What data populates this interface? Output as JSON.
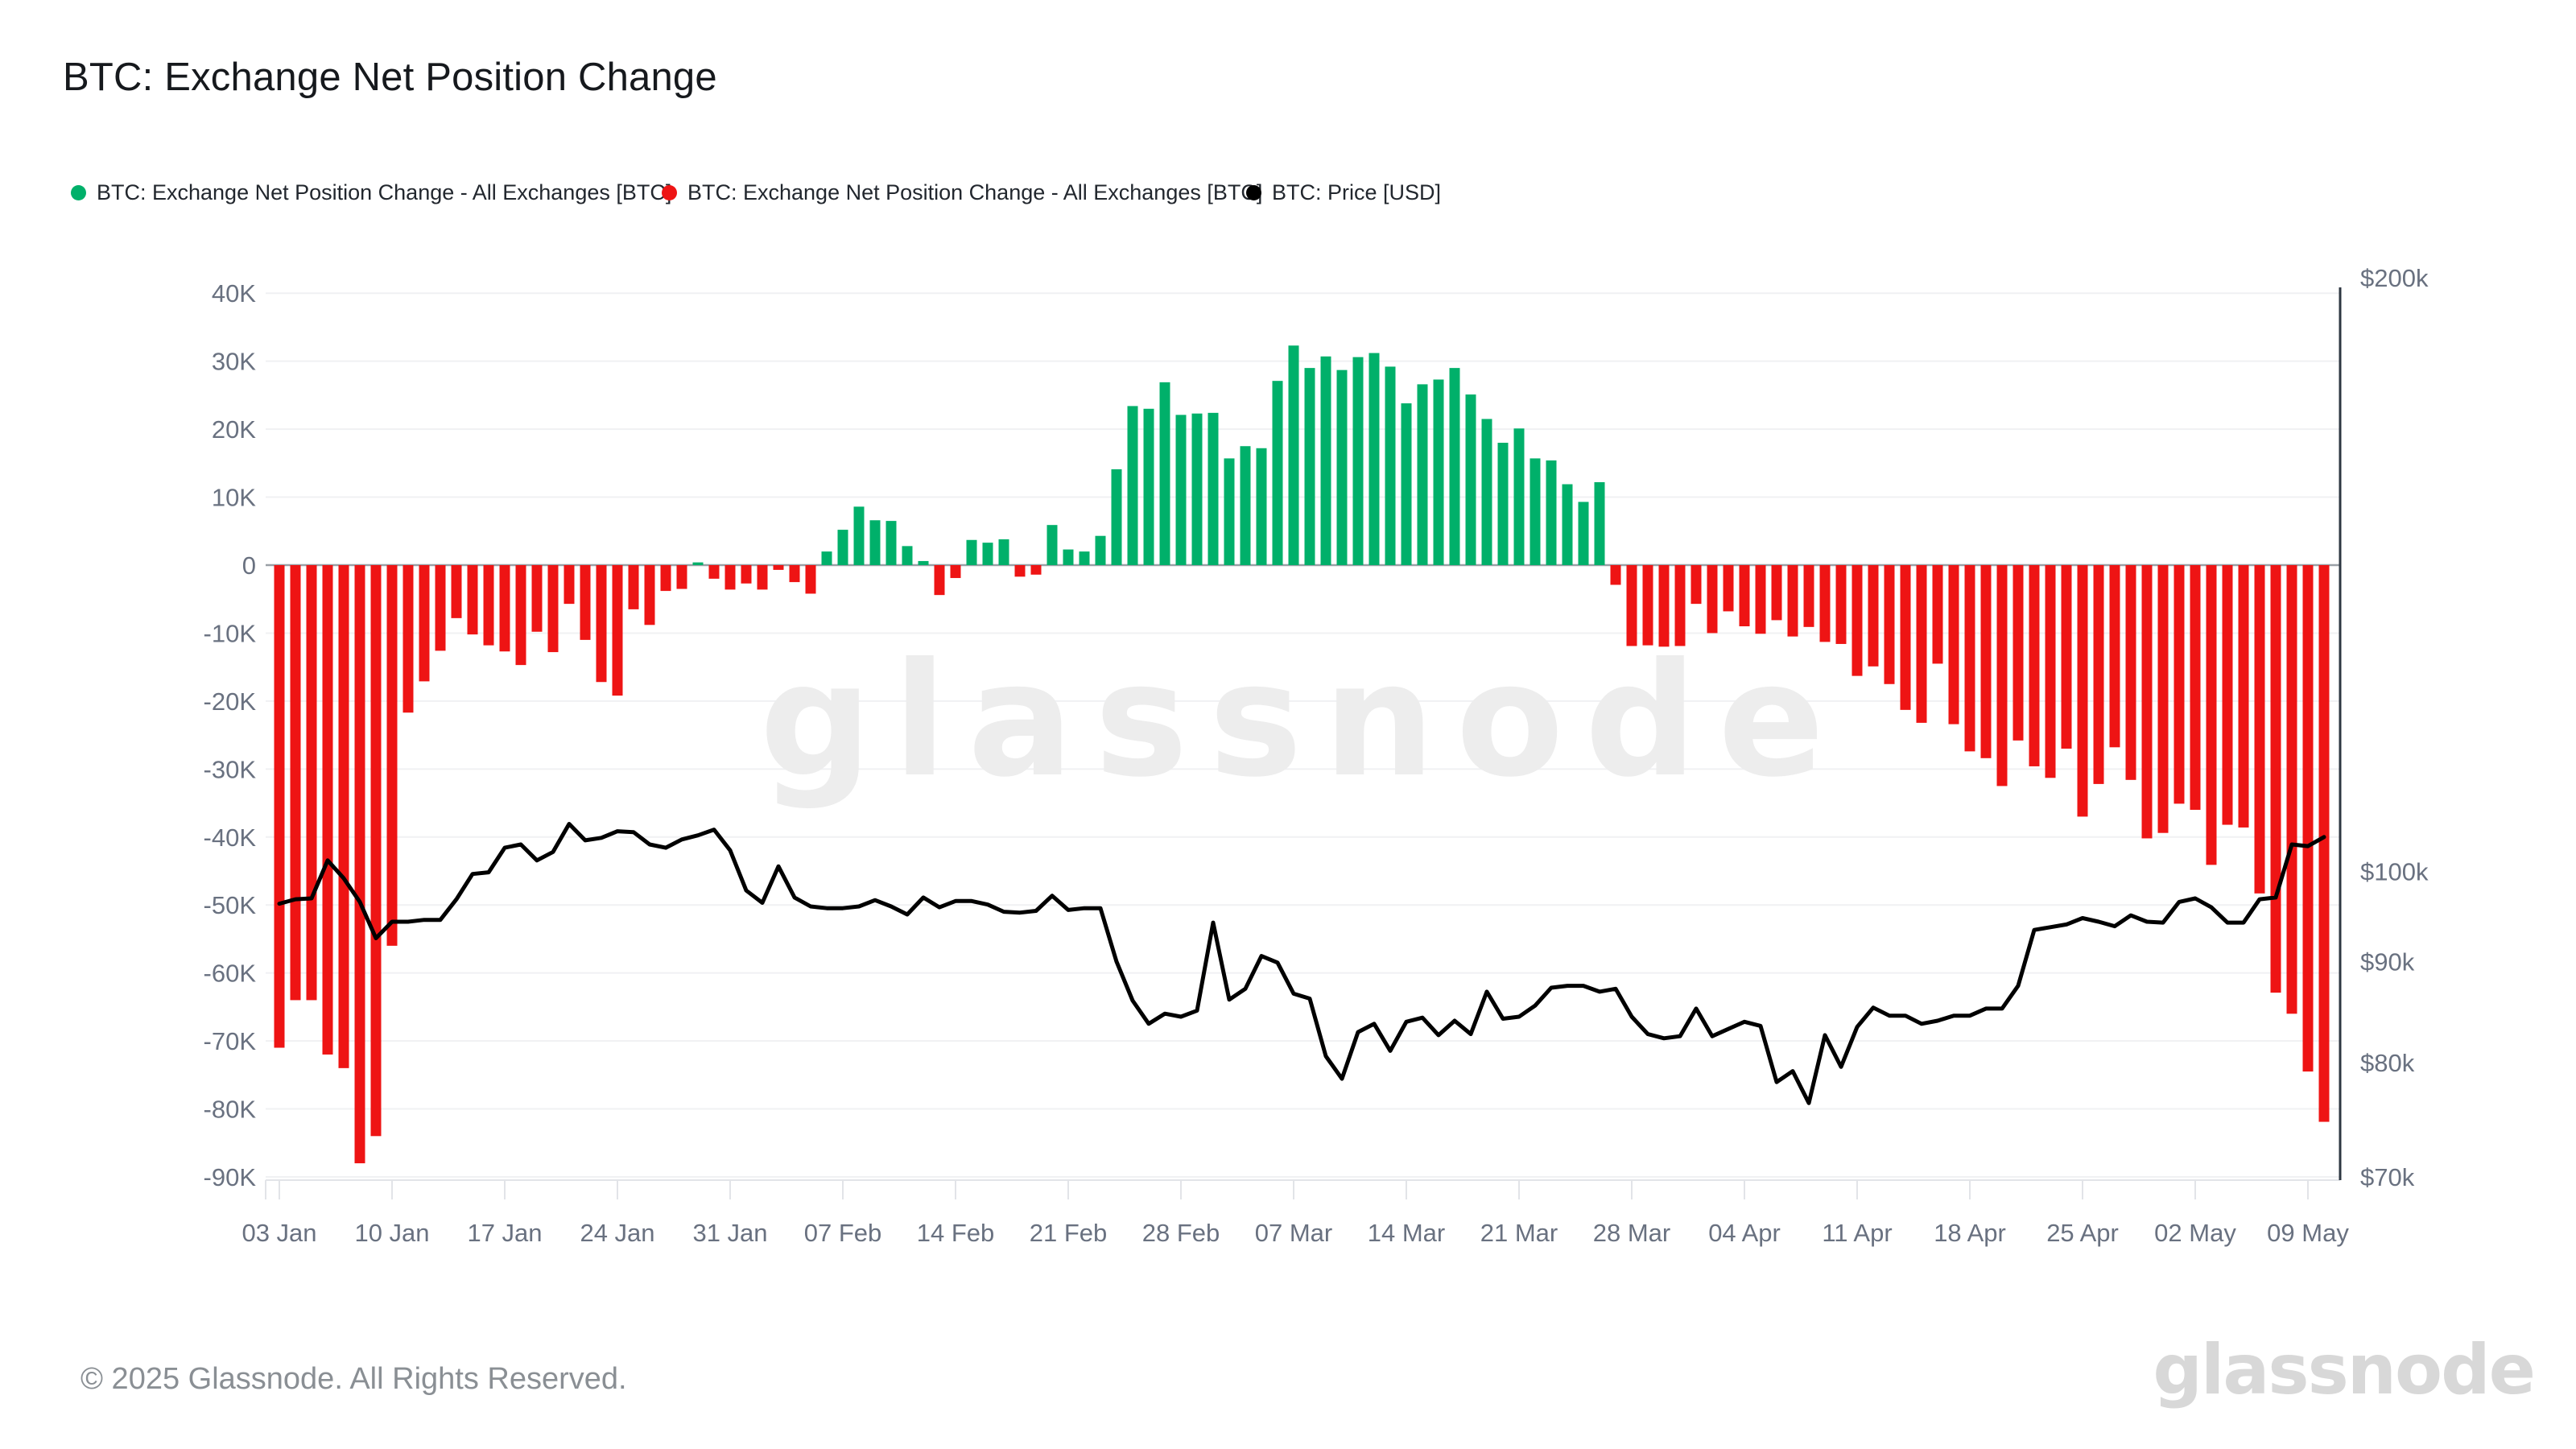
{
  "header": {
    "title": "BTC: Exchange Net Position Change"
  },
  "legend": [
    {
      "label": "BTC: Exchange Net Position Change - All Exchanges [BTC]",
      "color": "#00b06a",
      "marker": "circle-icon"
    },
    {
      "label": "BTC: Exchange Net Position Change - All Exchanges [BTC]",
      "color": "#ee1414",
      "marker": "circle-icon"
    },
    {
      "label": "BTC: Price [USD]",
      "color": "#000000",
      "marker": "circle-icon"
    }
  ],
  "watermark": "glassnode",
  "footer": {
    "copyright": "© 2025 Glassnode. All Rights Reserved.",
    "brand": "glassnode"
  },
  "chart_data": {
    "type": "bar+line",
    "title": "BTC: Exchange Net Position Change",
    "frequency": "daily",
    "start_label": "03 Jan",
    "end_label": "09 May",
    "x_ticks": [
      {
        "label": "03 Jan",
        "index": 0
      },
      {
        "label": "10 Jan",
        "index": 7
      },
      {
        "label": "17 Jan",
        "index": 14
      },
      {
        "label": "24 Jan",
        "index": 21
      },
      {
        "label": "31 Jan",
        "index": 28
      },
      {
        "label": "07 Feb",
        "index": 35
      },
      {
        "label": "14 Feb",
        "index": 42
      },
      {
        "label": "21 Feb",
        "index": 49
      },
      {
        "label": "28 Feb",
        "index": 56
      },
      {
        "label": "07 Mar",
        "index": 63
      },
      {
        "label": "14 Mar",
        "index": 70
      },
      {
        "label": "21 Mar",
        "index": 77
      },
      {
        "label": "28 Mar",
        "index": 84
      },
      {
        "label": "04 Apr",
        "index": 91
      },
      {
        "label": "11 Apr",
        "index": 98
      },
      {
        "label": "18 Apr",
        "index": 105
      },
      {
        "label": "25 Apr",
        "index": 112
      },
      {
        "label": "02 May",
        "index": 119
      },
      {
        "label": "09 May",
        "index": 126
      }
    ],
    "left_axis": {
      "unit": "BTC (thousands)",
      "scale": "linear",
      "range_k": [
        -90,
        40
      ],
      "ticks": [
        {
          "label": "40K",
          "value": 40
        },
        {
          "label": "30K",
          "value": 30
        },
        {
          "label": "20K",
          "value": 20
        },
        {
          "label": "10K",
          "value": 10
        },
        {
          "label": "0",
          "value": 0
        },
        {
          "label": "-10K",
          "value": -10
        },
        {
          "label": "-20K",
          "value": -20
        },
        {
          "label": "-30K",
          "value": -30
        },
        {
          "label": "-40K",
          "value": -40
        },
        {
          "label": "-50K",
          "value": -50
        },
        {
          "label": "-60K",
          "value": -60
        },
        {
          "label": "-70K",
          "value": -70
        },
        {
          "label": "-80K",
          "value": -80
        },
        {
          "label": "-90K",
          "value": -90
        }
      ]
    },
    "right_axis": {
      "unit": "USD",
      "scale": "log",
      "ticks": [
        {
          "label": "$200k",
          "value": 200
        },
        {
          "label": "$100k",
          "value": 100
        },
        {
          "label": "$90k",
          "value": 90
        },
        {
          "label": "$80k",
          "value": 80
        },
        {
          "label": "$70k",
          "value": 70
        }
      ]
    },
    "series": [
      {
        "name": "BTC: Exchange Net Position Change - All Exchanges [BTC]",
        "type": "bar",
        "unit": "K BTC",
        "positive_color": "#00b06a",
        "negative_color": "#ee1414",
        "values": [
          -71,
          -64,
          -64,
          -72,
          -74,
          -88,
          -84,
          -56,
          -21.7,
          -17.1,
          -12.6,
          -7.8,
          -10.2,
          -11.8,
          -12.7,
          -14.7,
          -9.8,
          -12.8,
          -5.7,
          -11.0,
          -17.2,
          -19.2,
          -6.5,
          -8.8,
          -3.8,
          -3.5,
          0.4,
          -2.0,
          -3.6,
          -2.7,
          -3.6,
          -0.7,
          -2.5,
          -4.2,
          2.0,
          5.2,
          8.6,
          6.6,
          6.5,
          2.8,
          0.6,
          -4.4,
          -1.9,
          3.7,
          3.3,
          3.8,
          -1.7,
          -1.4,
          5.9,
          2.3,
          2.0,
          4.3,
          14.1,
          23.4,
          23.0,
          26.9,
          22.1,
          22.3,
          22.4,
          15.7,
          17.5,
          17.2,
          27.1,
          32.3,
          29.0,
          30.7,
          28.7,
          30.6,
          31.2,
          29.2,
          23.8,
          26.6,
          27.3,
          29.0,
          25.1,
          21.5,
          18.0,
          20.1,
          15.7,
          15.4,
          11.9,
          9.3,
          12.2,
          -2.9,
          -11.9,
          -11.8,
          -12.0,
          -11.9,
          -5.7,
          -10.0,
          -6.8,
          -9.0,
          -10.1,
          -8.1,
          -10.5,
          -9.1,
          -11.3,
          -11.6,
          -16.3,
          -14.9,
          -17.5,
          -21.3,
          -23.2,
          -14.5,
          -23.4,
          -27.4,
          -28.4,
          -32.5,
          -25.8,
          -29.6,
          -31.3,
          -27.0,
          -37.0,
          -32.2,
          -26.8,
          -31.6,
          -40.2,
          -39.4,
          -35.1,
          -36.0,
          -44.1,
          -38.2,
          -38.6,
          -48.3,
          -62.9,
          -66.0,
          -74.5,
          -81.9
        ]
      },
      {
        "name": "BTC: Price [USD]",
        "type": "line",
        "unit": "$k",
        "color": "#000000",
        "values": [
          96.3,
          96.8,
          96.9,
          101.3,
          99.2,
          96.5,
          92.5,
          94.3,
          94.3,
          94.5,
          94.5,
          96.8,
          99.7,
          99.9,
          102.8,
          103.2,
          101.3,
          102.3,
          105.7,
          103.7,
          104.0,
          104.8,
          104.7,
          103.2,
          102.8,
          103.8,
          104.3,
          105.0,
          102.5,
          97.8,
          96.4,
          100.6,
          97.0,
          96.0,
          95.8,
          95.8,
          96.0,
          96.7,
          96.0,
          95.1,
          97.0,
          95.9,
          96.6,
          96.6,
          96.2,
          95.4,
          95.3,
          95.5,
          97.2,
          95.6,
          95.8,
          95.8,
          90.0,
          86.0,
          83.7,
          84.7,
          84.4,
          85.0,
          94.2,
          86.1,
          87.2,
          90.6,
          89.9,
          86.7,
          86.2,
          80.6,
          78.5,
          82.9,
          83.7,
          81.1,
          83.9,
          84.3,
          82.6,
          84.0,
          82.7,
          86.9,
          84.2,
          84.4,
          85.5,
          87.3,
          87.5,
          87.5,
          86.9,
          87.2,
          84.4,
          82.7,
          82.3,
          82.5,
          85.2,
          82.5,
          83.2,
          83.9,
          83.5,
          78.2,
          79.2,
          76.3,
          82.6,
          79.6,
          83.4,
          85.3,
          84.5,
          84.5,
          83.7,
          84.0,
          84.5,
          84.5,
          85.2,
          85.2,
          87.5,
          93.4,
          93.7,
          94.0,
          94.7,
          94.3,
          93.8,
          95.0,
          94.3,
          94.2,
          96.5,
          96.9,
          95.9,
          94.2,
          94.2,
          96.8,
          97.0,
          103.2,
          103.0,
          104.1
        ]
      }
    ],
    "layout": {
      "grid": true,
      "zero_line_color": "#9aa0a6",
      "gridline_color": "#f0f1f3",
      "axis_label_color": "#697180",
      "bottom_axis_color": "#e2e4e8",
      "right_axis_line_color": "#2e3742",
      "legend_position": "top"
    }
  }
}
